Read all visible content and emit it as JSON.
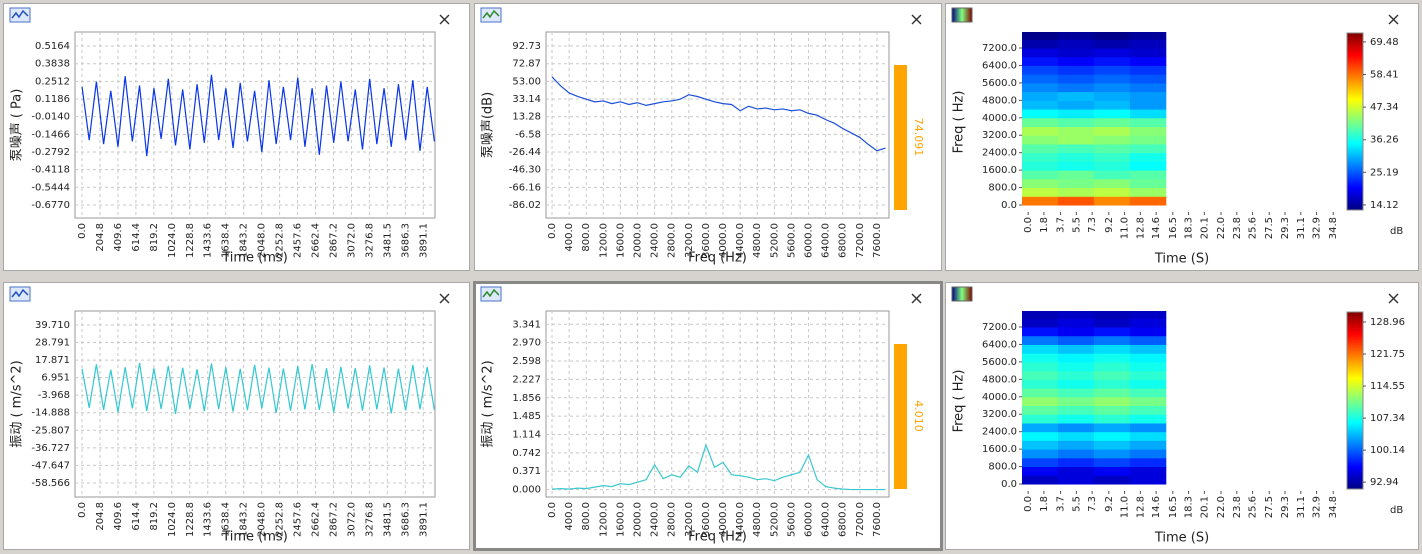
{
  "chart_data": [
    {
      "type": "line",
      "ylabel": "泵噪声 ( Pa)",
      "xlabel": "Time (ms)",
      "color": "#0a36e8",
      "grid": true,
      "xlim": [
        -80,
        4025
      ],
      "ylim": [
        -0.775,
        0.622
      ],
      "xticks": [
        {
          "value": 0,
          "label": "0.0"
        },
        204.8,
        409.6,
        614.4,
        819.2,
        {
          "value": 1024,
          "label": "1024.0"
        },
        1228.8,
        1433.6,
        1638.4,
        1843.2,
        {
          "value": 2048,
          "label": "2048.0"
        },
        2252.8,
        2457.6,
        2662.4,
        2867.2,
        {
          "value": 3072,
          "label": "3072.0"
        },
        3276.8,
        3481.5,
        3686.3,
        3891.1
      ],
      "yticks": [
        0.5164,
        0.3838,
        0.2512,
        0.1186,
        {
          "value": -0.014,
          "label": "-0.0140"
        },
        -0.1466,
        -0.2792,
        -0.4118,
        -0.5444,
        {
          "value": -0.677,
          "label": "-0.6770"
        }
      ],
      "x": [
        0,
        82,
        164,
        246,
        328,
        410,
        492,
        574,
        656,
        738,
        820,
        902,
        984,
        1066,
        1148,
        1230,
        1312,
        1394,
        1476,
        1558,
        1640,
        1722,
        1804,
        1886,
        1968,
        2050,
        2132,
        2214,
        2296,
        2378,
        2460,
        2542,
        2624,
        2706,
        2788,
        2870,
        2952,
        3034,
        3116,
        3198,
        3280,
        3362,
        3444,
        3526,
        3608,
        3690,
        3772,
        3854,
        3936,
        4018
      ],
      "values": [
        0.21,
        -0.19,
        0.25,
        -0.22,
        0.18,
        -0.24,
        0.29,
        -0.2,
        0.22,
        -0.31,
        0.2,
        -0.18,
        0.27,
        -0.23,
        0.19,
        -0.26,
        0.23,
        -0.21,
        0.3,
        -0.19,
        0.2,
        -0.25,
        0.24,
        -0.2,
        0.18,
        -0.28,
        0.26,
        -0.22,
        0.21,
        -0.19,
        0.28,
        -0.24,
        0.2,
        -0.3,
        0.22,
        -0.21,
        0.25,
        -0.2,
        0.19,
        -0.26,
        0.27,
        -0.22,
        0.2,
        -0.24,
        0.23,
        -0.19,
        0.26,
        -0.27,
        0.21,
        -0.2
      ]
    },
    {
      "type": "line",
      "ylabel": "泵噪声(dB)",
      "xlabel": "Freq (Hz)",
      "color": "#1a4fd8",
      "grid": true,
      "level": 74.091,
      "level_color": "#ffa500",
      "xlim": [
        -141,
        7882
      ],
      "ylim": [
        -100.6,
        108.5
      ],
      "xticks": [
        {
          "value": 0,
          "label": "0.0"
        },
        {
          "value": 400,
          "label": "400.0"
        },
        {
          "value": 800,
          "label": "800.0"
        },
        {
          "value": 1200,
          "label": "1200.0"
        },
        {
          "value": 1600,
          "label": "1600.0"
        },
        {
          "value": 2000,
          "label": "2000.0"
        },
        {
          "value": 2400,
          "label": "2400.0"
        },
        {
          "value": 2800,
          "label": "2800.0"
        },
        {
          "value": 3200,
          "label": "3200.0"
        },
        {
          "value": 3600,
          "label": "3600.0"
        },
        {
          "value": 4000,
          "label": "4000.0"
        },
        {
          "value": 4400,
          "label": "4400.0"
        },
        {
          "value": 4800,
          "label": "4800.0"
        },
        {
          "value": 5200,
          "label": "5200.0"
        },
        {
          "value": 5600,
          "label": "5600.0"
        },
        {
          "value": 6000,
          "label": "6000.0"
        },
        {
          "value": 6400,
          "label": "6400.0"
        },
        {
          "value": 6800,
          "label": "6800.0"
        },
        {
          "value": 7200,
          "label": "7200.0"
        },
        {
          "value": 7600,
          "label": "7600.0"
        }
      ],
      "yticks": [
        92.73,
        72.87,
        {
          "value": 53,
          "label": "53.00"
        },
        33.14,
        13.28,
        -6.58,
        -26.44,
        {
          "value": -46.3,
          "label": "-46.30"
        },
        -66.16,
        -86.02
      ],
      "x": [
        0,
        200,
        400,
        600,
        800,
        1000,
        1200,
        1400,
        1600,
        1800,
        2000,
        2200,
        2400,
        2600,
        2800,
        3000,
        3200,
        3400,
        3600,
        3800,
        4000,
        4200,
        4400,
        4600,
        4800,
        5000,
        5200,
        5400,
        5600,
        5800,
        6000,
        6200,
        6400,
        6600,
        6800,
        7000,
        7200,
        7400,
        7600,
        7800
      ],
      "values": [
        58,
        48,
        40,
        36,
        33,
        30,
        31,
        28,
        30,
        27,
        29,
        26,
        28,
        30,
        31,
        33,
        38,
        36,
        33,
        30,
        28,
        27,
        20,
        25,
        22,
        23,
        21,
        22,
        20,
        21,
        17,
        15,
        10,
        6,
        0,
        -5,
        -10,
        -18,
        -25,
        -22
      ]
    },
    {
      "type": "heatmap",
      "ylabel": "Freq ( Hz)",
      "xlabel": "Time (S)",
      "colormap": "jet",
      "clabel": "dB",
      "xlim": [
        -0.7,
        35.8
      ],
      "ylim": [
        -320,
        7934
      ],
      "clim": [
        12.4,
        72.5
      ],
      "xticks": [
        {
          "value": 0,
          "label": "0.0"
        },
        1.8,
        3.7,
        5.5,
        7.3,
        9.2,
        {
          "value": 11,
          "label": "11.0"
        },
        12.8,
        14.6,
        16.5,
        18.3,
        20.1,
        {
          "value": 22,
          "label": "22.0"
        },
        23.8,
        25.6,
        27.5,
        29.3,
        31.1,
        32.9,
        34.8
      ],
      "yticks": [
        {
          "value": 0,
          "label": "0.0"
        },
        {
          "value": 800,
          "label": "800.0"
        },
        {
          "value": 1600,
          "label": "1600.0"
        },
        {
          "value": 2400,
          "label": "2400.0"
        },
        {
          "value": 3200,
          "label": "3200.0"
        },
        {
          "value": 4000,
          "label": "4000.0"
        },
        {
          "value": 4800,
          "label": "4800.0"
        },
        {
          "value": 5600,
          "label": "5600.0"
        },
        {
          "value": 6400,
          "label": "6400.0"
        },
        {
          "value": 7200,
          "label": "7200.0"
        }
      ],
      "cticks": [
        69.48,
        58.41,
        47.34,
        36.26,
        25.19,
        14.12
      ],
      "x": [
        1.35,
        5.45,
        9.55,
        13.65
      ],
      "y": [
        200,
        600,
        1000,
        1400,
        1800,
        2200,
        2600,
        3000,
        3400,
        3800,
        4200,
        4600,
        5000,
        5400,
        5800,
        6200,
        6600,
        7000,
        7400,
        7800
      ],
      "values": [
        [
          58,
          60,
          57,
          59
        ],
        [
          46,
          45,
          46,
          44
        ],
        [
          43,
          42,
          43,
          41
        ],
        [
          40,
          41,
          39,
          40
        ],
        [
          37,
          36,
          37,
          35
        ],
        [
          38,
          37,
          38,
          36
        ],
        [
          40,
          39,
          40,
          39
        ],
        [
          43,
          44,
          43,
          42
        ],
        [
          45,
          44,
          45,
          43
        ],
        [
          41,
          40,
          41,
          40
        ],
        [
          35,
          34,
          35,
          33
        ],
        [
          31,
          30,
          31,
          29
        ],
        [
          30,
          31,
          30,
          29
        ],
        [
          28,
          27,
          28,
          27
        ],
        [
          26,
          25,
          26,
          25
        ],
        [
          24,
          23,
          24,
          23
        ],
        [
          21,
          20,
          21,
          20
        ],
        [
          18,
          17,
          18,
          17
        ],
        [
          15,
          16,
          15,
          16
        ],
        [
          13,
          14,
          13,
          14
        ]
      ]
    },
    {
      "type": "line",
      "ylabel": "振动 ( m/s^2)",
      "xlabel": "Time (ms)",
      "color": "#33c8d2",
      "grid": true,
      "xlim": [
        -80,
        4025
      ],
      "ylim": [
        -67.3,
        48.4
      ],
      "xticks": [
        {
          "value": 0,
          "label": "0.0"
        },
        204.8,
        409.6,
        614.4,
        819.2,
        {
          "value": 1024,
          "label": "1024.0"
        },
        1228.8,
        1433.6,
        1638.4,
        1843.2,
        {
          "value": 2048,
          "label": "2048.0"
        },
        2252.8,
        2457.6,
        2662.4,
        2867.2,
        {
          "value": 3072,
          "label": "3072.0"
        },
        3276.8,
        3481.5,
        3686.3,
        3891.1
      ],
      "yticks": [
        {
          "value": 39.71,
          "label": "39.710"
        },
        28.791,
        17.871,
        6.951,
        -3.968,
        -14.888,
        -25.807,
        -36.727,
        -47.647,
        -58.566
      ],
      "x": [
        0,
        82,
        164,
        246,
        328,
        410,
        492,
        574,
        656,
        738,
        820,
        902,
        984,
        1066,
        1148,
        1230,
        1312,
        1394,
        1476,
        1558,
        1640,
        1722,
        1804,
        1886,
        1968,
        2050,
        2132,
        2214,
        2296,
        2378,
        2460,
        2542,
        2624,
        2706,
        2788,
        2870,
        2952,
        3034,
        3116,
        3198,
        3280,
        3362,
        3444,
        3526,
        3608,
        3690,
        3772,
        3854,
        3936,
        4018
      ],
      "values": [
        12.5,
        -11.8,
        15.2,
        -13.1,
        11.9,
        -14.6,
        13.4,
        -12.2,
        16.1,
        -13.8,
        12.7,
        -12.5,
        14.3,
        -15.7,
        13.1,
        -12.4,
        12.2,
        -13.9,
        15.8,
        -12.6,
        13.5,
        -14.2,
        12.4,
        -13.3,
        14.9,
        -12.1,
        13.2,
        -15.1,
        12.6,
        -13.6,
        14.1,
        -12.9,
        15.4,
        -13.2,
        12.8,
        -14.7,
        13.7,
        -12.3,
        12.9,
        -13.5,
        14.6,
        -12.8,
        13.3,
        -15.3,
        12.5,
        -13.4,
        14.8,
        -12.7,
        13.6,
        -13.1
      ]
    },
    {
      "type": "line",
      "ylabel": "振动 ( m/s^2)",
      "xlabel": "Freq (Hz)",
      "color": "#3cc8d0",
      "grid": true,
      "level": {
        "value": 4.01,
        "label": "4.010"
      },
      "level_color": "#ffa500",
      "xlim": [
        -141,
        7882
      ],
      "ylim": [
        -0.15,
        3.61
      ],
      "xticks": [
        {
          "value": 0,
          "label": "0.0"
        },
        {
          "value": 400,
          "label": "400.0"
        },
        {
          "value": 800,
          "label": "800.0"
        },
        {
          "value": 1200,
          "label": "1200.0"
        },
        {
          "value": 1600,
          "label": "1600.0"
        },
        {
          "value": 2000,
          "label": "2000.0"
        },
        {
          "value": 2400,
          "label": "2400.0"
        },
        {
          "value": 2800,
          "label": "2800.0"
        },
        {
          "value": 3200,
          "label": "3200.0"
        },
        {
          "value": 3600,
          "label": "3600.0"
        },
        {
          "value": 4000,
          "label": "4000.0"
        },
        {
          "value": 4400,
          "label": "4400.0"
        },
        {
          "value": 4800,
          "label": "4800.0"
        },
        {
          "value": 5200,
          "label": "5200.0"
        },
        {
          "value": 5600,
          "label": "5600.0"
        },
        {
          "value": 6000,
          "label": "6000.0"
        },
        {
          "value": 6400,
          "label": "6400.0"
        },
        {
          "value": 6800,
          "label": "6800.0"
        },
        {
          "value": 7200,
          "label": "7200.0"
        },
        {
          "value": 7600,
          "label": "7600.0"
        }
      ],
      "yticks": [
        3.341,
        {
          "value": 2.97,
          "label": "2.970"
        },
        2.598,
        2.227,
        1.856,
        1.485,
        1.114,
        0.742,
        0.371,
        {
          "value": 0,
          "label": "0.000"
        }
      ],
      "x": [
        0,
        200,
        400,
        600,
        800,
        1000,
        1200,
        1400,
        1600,
        1800,
        2000,
        2200,
        2400,
        2600,
        2800,
        3000,
        3200,
        3400,
        3600,
        3800,
        4000,
        4200,
        4400,
        4600,
        4800,
        5000,
        5200,
        5400,
        5600,
        5800,
        6000,
        6200,
        6400,
        6600,
        6800,
        7000,
        7200,
        7400,
        7600,
        7800
      ],
      "values": [
        0.01,
        0.02,
        0.01,
        0.03,
        0.02,
        0.05,
        0.08,
        0.06,
        0.12,
        0.1,
        0.15,
        0.2,
        0.5,
        0.22,
        0.3,
        0.25,
        0.48,
        0.35,
        0.9,
        0.45,
        0.55,
        0.3,
        0.28,
        0.25,
        0.2,
        0.22,
        0.18,
        0.25,
        0.3,
        0.35,
        0.7,
        0.2,
        0.06,
        0.03,
        0.01,
        0,
        0,
        0,
        0,
        0
      ]
    },
    {
      "type": "heatmap",
      "ylabel": "Freq ( Hz)",
      "xlabel": "Time (S)",
      "colormap": "jet",
      "clabel": "dB",
      "xlim": [
        -0.7,
        35.8
      ],
      "ylim": [
        -320,
        7934
      ],
      "clim": [
        91.4,
        131.2
      ],
      "xticks": [
        {
          "value": 0,
          "label": "0.0"
        },
        1.8,
        3.7,
        5.5,
        7.3,
        9.2,
        {
          "value": 11,
          "label": "11.0"
        },
        12.8,
        14.6,
        16.5,
        18.3,
        20.1,
        {
          "value": 22,
          "label": "22.0"
        },
        23.8,
        25.6,
        27.5,
        29.3,
        31.1,
        32.9,
        34.8
      ],
      "yticks": [
        {
          "value": 0,
          "label": "0.0"
        },
        {
          "value": 800,
          "label": "800.0"
        },
        {
          "value": 1600,
          "label": "1600.0"
        },
        {
          "value": 2400,
          "label": "2400.0"
        },
        {
          "value": 3200,
          "label": "3200.0"
        },
        {
          "value": 4000,
          "label": "4000.0"
        },
        {
          "value": 4800,
          "label": "4800.0"
        },
        {
          "value": 5600,
          "label": "5600.0"
        },
        {
          "value": 6400,
          "label": "6400.0"
        },
        {
          "value": 7200,
          "label": "7200.0"
        }
      ],
      "cticks": [
        128.96,
        121.75,
        114.55,
        107.34,
        100.14,
        92.94
      ],
      "x": [
        1.35,
        5.45,
        9.55,
        13.65
      ],
      "y": [
        200,
        600,
        1000,
        1400,
        1800,
        2200,
        2600,
        3000,
        3400,
        3800,
        4200,
        4600,
        5000,
        5400,
        5800,
        6200,
        6600,
        7000,
        7400,
        7800
      ],
      "values": [
        [
          94,
          95,
          94,
          95
        ],
        [
          96,
          95,
          96,
          95
        ],
        [
          99,
          98,
          99,
          98
        ],
        [
          102,
          101,
          102,
          101
        ],
        [
          104,
          103,
          104,
          103
        ],
        [
          106,
          105,
          106,
          105
        ],
        [
          103,
          102,
          103,
          102
        ],
        [
          108,
          107,
          108,
          107
        ],
        [
          110,
          109,
          110,
          109
        ],
        [
          112,
          111,
          112,
          111
        ],
        [
          110,
          109,
          110,
          109
        ],
        [
          108,
          107,
          108,
          107
        ],
        [
          109,
          108,
          109,
          108
        ],
        [
          108,
          107,
          108,
          107
        ],
        [
          107,
          106,
          107,
          106
        ],
        [
          105,
          104,
          105,
          104
        ],
        [
          101,
          100,
          101,
          100
        ],
        [
          97,
          96,
          97,
          96
        ],
        [
          94,
          95,
          94,
          95
        ],
        [
          93.5,
          94,
          93.5,
          94
        ]
      ]
    }
  ]
}
